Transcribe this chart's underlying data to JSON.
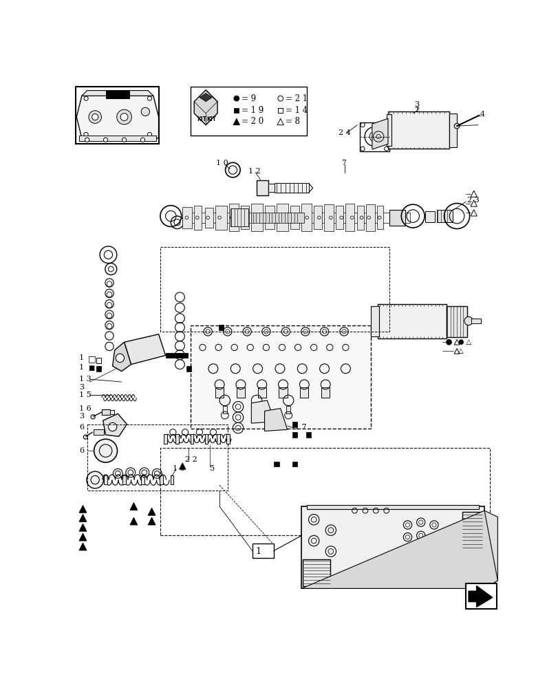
{
  "bg": "#ffffff",
  "lc": "#000000",
  "gray": "#888888",
  "lgray": "#cccccc",
  "fw": 8.12,
  "fh": 10.0
}
